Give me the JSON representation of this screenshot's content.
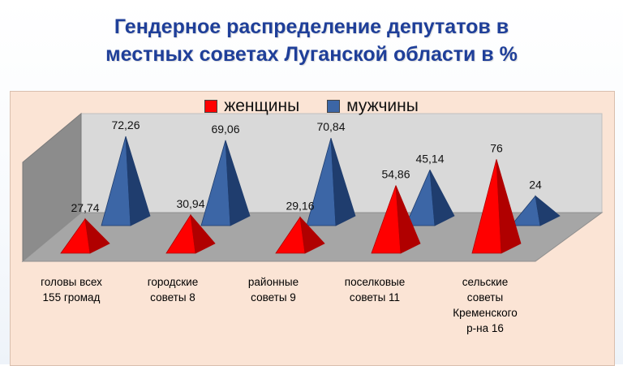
{
  "title_line1": "Гендерное распределение депутатов в",
  "title_line2": "местных советах Луганской области в %",
  "colors": {
    "women": "#ff0000",
    "women_dark": "#b00000",
    "men": "#3c66a6",
    "men_dark": "#1f3d6e",
    "title": "#1f3f99"
  },
  "chart_data": {
    "type": "bar",
    "style": "3d-pyramid",
    "categories": [
      [
        "головы всех",
        "155 громад"
      ],
      [
        "городские",
        "советы 8"
      ],
      [
        "районные",
        "советы 9"
      ],
      [
        "поселковые",
        "советы 11"
      ],
      [
        "сельские",
        "советы",
        "Кременского",
        "р-на 16"
      ]
    ],
    "series": [
      {
        "name": "женщины",
        "values": [
          27.74,
          30.94,
          29.16,
          54.86,
          76
        ],
        "labels": [
          "27,74",
          "30,94",
          "29,16",
          "54,86",
          "76"
        ]
      },
      {
        "name": "мужчины",
        "values": [
          72.26,
          69.06,
          70.84,
          45.14,
          24
        ],
        "labels": [
          "72,26",
          "69,06",
          "70,84",
          "45,14",
          "24"
        ]
      }
    ],
    "ylim": [
      0,
      100
    ],
    "legend": "top-center"
  }
}
